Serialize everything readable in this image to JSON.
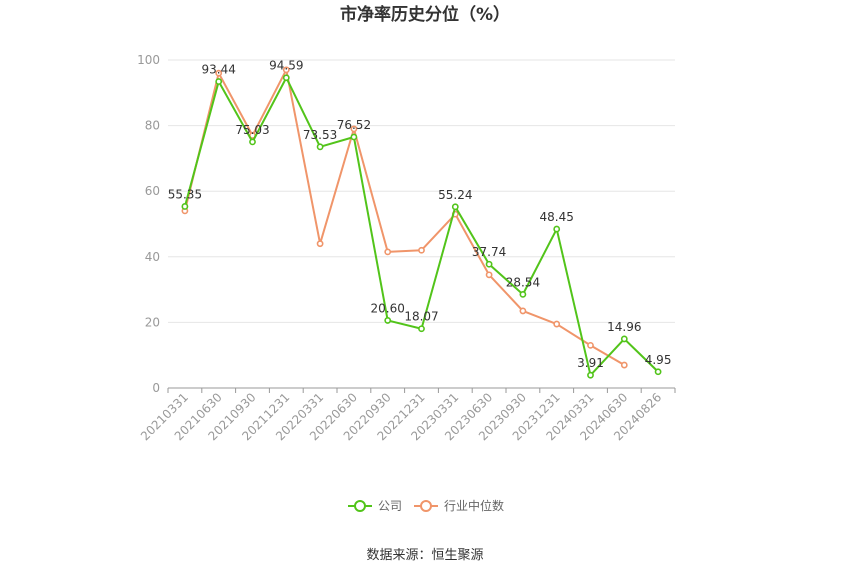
{
  "chart_data": {
    "type": "line",
    "title": "市净率历史分位（%）",
    "categories": [
      "20210331",
      "20210630",
      "20210930",
      "20211231",
      "20220331",
      "20220630",
      "20220930",
      "20221231",
      "20230331",
      "20230630",
      "20230930",
      "20231231",
      "20240331",
      "20240630",
      "20240826"
    ],
    "ylim": [
      0,
      100
    ],
    "yticks": [
      0,
      20,
      40,
      60,
      80,
      100
    ],
    "grid": true,
    "legend_position": "bottom",
    "series": [
      {
        "name": "公司",
        "color": "#52c41a",
        "values": [
          55.35,
          93.44,
          75.03,
          94.59,
          73.53,
          76.52,
          20.6,
          18.07,
          55.24,
          37.74,
          28.54,
          48.45,
          3.91,
          14.96,
          4.95
        ],
        "labels": [
          "55.35",
          "93.44",
          "75.03",
          "94.59",
          "73.53",
          "76.52",
          "20.60",
          "18.07",
          "55.24",
          "37.74",
          "28.54",
          "48.45",
          "3.91",
          "14.96",
          "4.95"
        ]
      },
      {
        "name": "行业中位数",
        "color": "#f0956a",
        "values": [
          54,
          96,
          77,
          97,
          44,
          79,
          41.5,
          42,
          53,
          34.5,
          23.5,
          19.5,
          13,
          7,
          null
        ]
      }
    ],
    "source": "数据来源：恒生聚源"
  }
}
